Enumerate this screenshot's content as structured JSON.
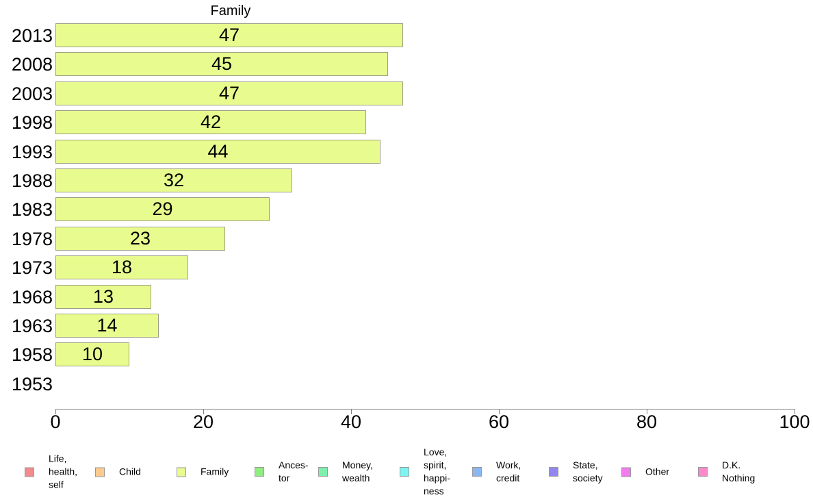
{
  "chart_data": {
    "type": "bar",
    "orientation": "horizontal",
    "title": "Family",
    "categories": [
      "2013",
      "2008",
      "2003",
      "1998",
      "1993",
      "1988",
      "1983",
      "1978",
      "1973",
      "1968",
      "1963",
      "1958",
      "1953"
    ],
    "values": [
      47,
      45,
      47,
      42,
      44,
      32,
      29,
      23,
      18,
      13,
      14,
      10,
      null
    ],
    "xlim": [
      0,
      100
    ],
    "x_ticks": [
      0,
      20,
      40,
      60,
      80,
      100
    ],
    "xlabel": "",
    "ylabel": "",
    "grid": false,
    "value_labels_position": "inside-center",
    "bar_color": "#E8FB8E",
    "bar_border_color": "#9E9E85",
    "legend_position": "bottom"
  },
  "legend": {
    "items": [
      {
        "name": "life-health-self",
        "label": "Life,\nhealth,\nself",
        "color": "#F28C8C"
      },
      {
        "name": "child",
        "label": "Child",
        "color": "#FCCB8C"
      },
      {
        "name": "family",
        "label": "Family",
        "color": "#E8FB8E"
      },
      {
        "name": "ancestor",
        "label": "Ances-\ntor",
        "color": "#90EE7E"
      },
      {
        "name": "money-wealth",
        "label": "Money,\nwealth",
        "color": "#7FEFAE"
      },
      {
        "name": "love-spirit-happiness",
        "label": "Love,\nspirit,\nhappi-\nness",
        "color": "#7FF2F2"
      },
      {
        "name": "work-credit",
        "label": "Work,\ncredit",
        "color": "#8CB6F2"
      },
      {
        "name": "state-society",
        "label": "State,\nsociety",
        "color": "#9486F0"
      },
      {
        "name": "other",
        "label": "Other",
        "color": "#F07CF0"
      },
      {
        "name": "dk-nothing",
        "label": "D.K.\nNothing",
        "color": "#FA8ACA"
      }
    ]
  }
}
